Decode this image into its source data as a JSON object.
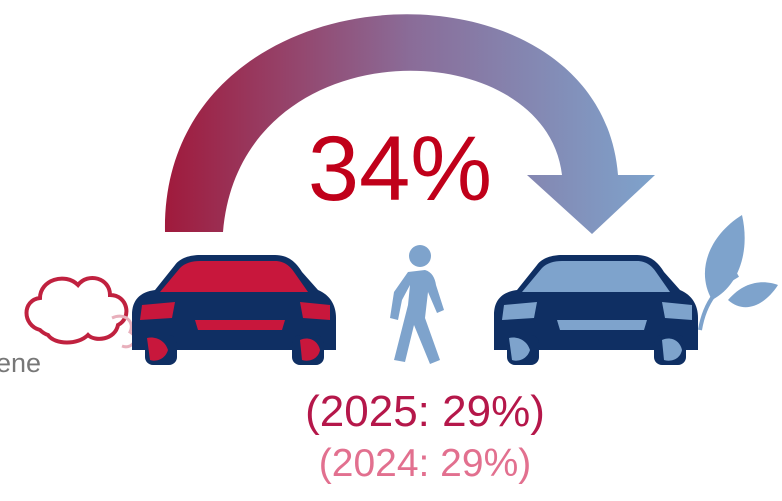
{
  "main_value": "34%",
  "comparison_2025": "(2025: 29%)",
  "comparison_2024": "(2024: 29%)",
  "side_label": "ene"
}
